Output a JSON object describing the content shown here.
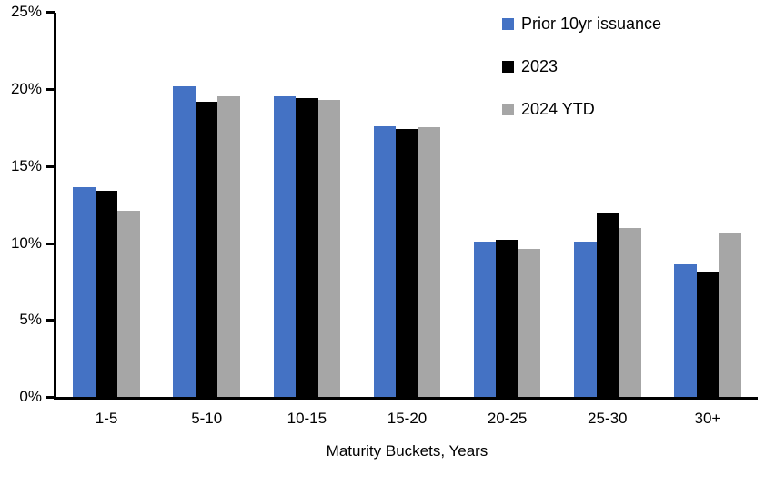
{
  "chart_data": {
    "type": "bar",
    "title": "",
    "xlabel": "Maturity Buckets, Years",
    "ylabel": "",
    "categories": [
      "1-5",
      "5-10",
      "10-15",
      "15-20",
      "20-25",
      "25-30",
      "30+"
    ],
    "series": [
      {
        "name": "Prior 10yr issuance",
        "color": "#4472C4",
        "values": [
          13.6,
          20.2,
          19.5,
          17.6,
          10.1,
          10.1,
          8.6
        ]
      },
      {
        "name": "2023",
        "color": "#000000",
        "values": [
          13.4,
          19.2,
          19.4,
          17.4,
          10.2,
          11.9,
          8.1
        ]
      },
      {
        "name": "2024 YTD",
        "color": "#A6A6A6",
        "values": [
          12.1,
          19.5,
          19.3,
          17.5,
          9.6,
          11.0,
          10.7
        ]
      }
    ],
    "ylim": [
      0,
      25
    ],
    "yticks": [
      0,
      5,
      10,
      15,
      20,
      25
    ],
    "ytick_suffix": "%",
    "grid": false,
    "legend_position": "top-right",
    "axis_color": "#000000",
    "background_color": "#FFFFFF"
  }
}
